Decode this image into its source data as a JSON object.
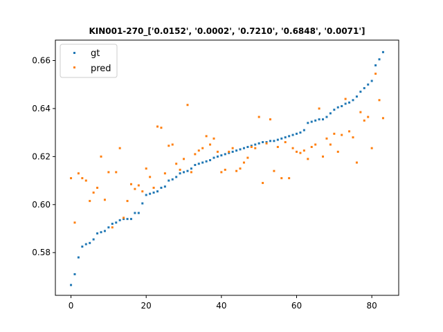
{
  "chart_data": {
    "type": "scatter",
    "title": "KIN001-270_['0.0152', '0.0002', '0.7210', '0.6848', '0.0071']",
    "xlabel": "",
    "ylabel": "",
    "xlim": [
      -4.15,
      87.15
    ],
    "ylim": [
      0.5622,
      0.6685
    ],
    "xticks": [
      0,
      20,
      40,
      60,
      80
    ],
    "yticks": [
      0.58,
      0.6,
      0.62,
      0.64,
      0.66
    ],
    "ytick_labels": [
      "0.58",
      "0.60",
      "0.62",
      "0.64",
      "0.66"
    ],
    "legend_position": "top-left",
    "series": [
      {
        "name": "gt",
        "color": "#1f77b4",
        "x": [
          0,
          1,
          2,
          3,
          4,
          5,
          6,
          7,
          8,
          9,
          10,
          11,
          12,
          13,
          14,
          15,
          16,
          17,
          18,
          19,
          20,
          21,
          22,
          23,
          24,
          25,
          26,
          27,
          28,
          29,
          30,
          31,
          32,
          33,
          34,
          35,
          36,
          37,
          38,
          39,
          40,
          41,
          42,
          43,
          44,
          45,
          46,
          47,
          48,
          49,
          50,
          51,
          52,
          53,
          54,
          55,
          56,
          57,
          58,
          59,
          60,
          61,
          62,
          63,
          64,
          65,
          66,
          67,
          68,
          69,
          70,
          71,
          72,
          73,
          74,
          75,
          76,
          77,
          78,
          79,
          80,
          81,
          82,
          83
        ],
        "y": [
          0.5665,
          0.571,
          0.578,
          0.5825,
          0.5835,
          0.584,
          0.5855,
          0.588,
          0.5885,
          0.589,
          0.5905,
          0.592,
          0.5925,
          0.5935,
          0.594,
          0.594,
          0.594,
          0.5965,
          0.5965,
          0.6005,
          0.604,
          0.6045,
          0.605,
          0.6055,
          0.607,
          0.6075,
          0.61,
          0.6105,
          0.6115,
          0.613,
          0.6135,
          0.614,
          0.615,
          0.6165,
          0.617,
          0.6175,
          0.618,
          0.6185,
          0.6195,
          0.62,
          0.6205,
          0.621,
          0.6215,
          0.622,
          0.6225,
          0.623,
          0.6235,
          0.624,
          0.6245,
          0.625,
          0.6255,
          0.626,
          0.626,
          0.6265,
          0.6265,
          0.627,
          0.6275,
          0.628,
          0.6285,
          0.629,
          0.6295,
          0.63,
          0.631,
          0.634,
          0.6345,
          0.635,
          0.6355,
          0.6355,
          0.6365,
          0.638,
          0.6395,
          0.6405,
          0.641,
          0.642,
          0.6425,
          0.6435,
          0.645,
          0.647,
          0.6485,
          0.65,
          0.6515,
          0.658,
          0.6605,
          0.6635
        ]
      },
      {
        "name": "pred",
        "color": "#ff7f0e",
        "x": [
          0,
          1,
          2,
          3,
          4,
          5,
          6,
          7,
          8,
          9,
          10,
          11,
          12,
          13,
          14,
          15,
          16,
          17,
          18,
          19,
          20,
          21,
          22,
          23,
          24,
          25,
          26,
          27,
          28,
          29,
          30,
          31,
          32,
          33,
          34,
          35,
          36,
          37,
          38,
          39,
          40,
          41,
          42,
          43,
          44,
          45,
          46,
          47,
          48,
          49,
          50,
          51,
          52,
          53,
          54,
          55,
          56,
          57,
          58,
          59,
          60,
          61,
          62,
          63,
          64,
          65,
          66,
          67,
          68,
          69,
          70,
          71,
          72,
          73,
          74,
          75,
          76,
          77,
          78,
          79,
          80,
          81,
          82,
          83
        ],
        "y": [
          0.611,
          0.5925,
          0.613,
          0.611,
          0.61,
          0.6015,
          0.605,
          0.607,
          0.62,
          0.602,
          0.6135,
          0.5905,
          0.6135,
          0.6235,
          0.5945,
          0.6015,
          0.6085,
          0.6065,
          0.608,
          0.6055,
          0.615,
          0.6115,
          0.607,
          0.6325,
          0.632,
          0.613,
          0.6245,
          0.625,
          0.617,
          0.6145,
          0.619,
          0.6415,
          0.6135,
          0.621,
          0.6225,
          0.6235,
          0.6285,
          0.625,
          0.6275,
          0.622,
          0.6135,
          0.6145,
          0.622,
          0.6235,
          0.614,
          0.615,
          0.6175,
          0.6195,
          0.624,
          0.6235,
          0.6365,
          0.609,
          0.6255,
          0.6355,
          0.614,
          0.624,
          0.611,
          0.626,
          0.611,
          0.6235,
          0.622,
          0.6215,
          0.6225,
          0.619,
          0.624,
          0.625,
          0.64,
          0.62,
          0.6275,
          0.625,
          0.6295,
          0.622,
          0.629,
          0.644,
          0.6305,
          0.628,
          0.6175,
          0.6385,
          0.635,
          0.6365,
          0.6235,
          0.6545,
          0.6435,
          0.636
        ]
      }
    ]
  }
}
